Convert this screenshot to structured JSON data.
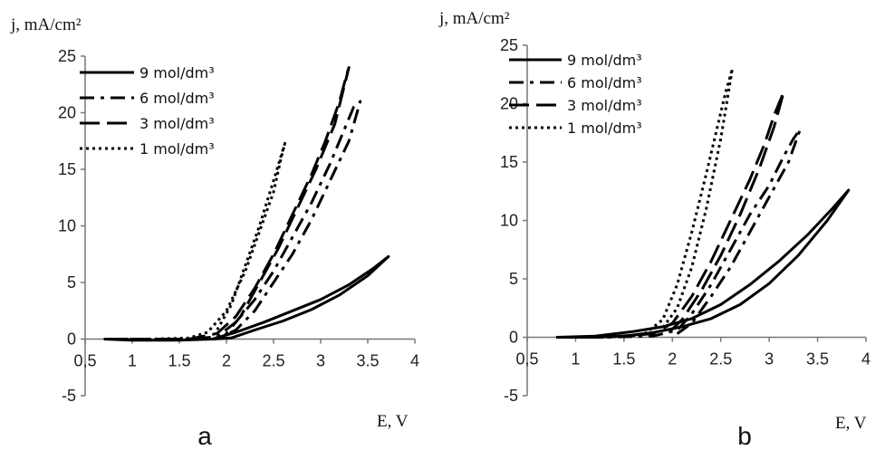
{
  "chart_data": [
    {
      "type": "line",
      "panel_label": "a",
      "xlabel": "E, V",
      "ylabel": "j, mA/cm²",
      "xlim": [
        0.5,
        4
      ],
      "ylim": [
        -5,
        25
      ],
      "xticks": [
        "0,5",
        "1",
        "1.5",
        "2",
        "2.5",
        "3",
        "3.5",
        "4"
      ],
      "yticks": [
        "-5",
        "0",
        "5",
        "10",
        "15",
        "20",
        "25"
      ],
      "legend_position": "top-left",
      "series": [
        {
          "name": "9 mol/dm³",
          "dash": "solid",
          "x": [
            0.7,
            1.0,
            1.5,
            1.85,
            2.1,
            2.4,
            2.7,
            3.0,
            3.3,
            3.55,
            3.72,
            3.5,
            3.2,
            2.9,
            2.6,
            2.3,
            2.05,
            1.85
          ],
          "y": [
            0,
            -0.1,
            -0.1,
            0,
            0.6,
            1.5,
            2.5,
            3.5,
            4.8,
            6.2,
            7.3,
            5.6,
            3.9,
            2.6,
            1.6,
            0.8,
            0.1,
            0
          ]
        },
        {
          "name": "6 mol/dm³",
          "dash": "dash-dot",
          "x": [
            0.7,
            1.2,
            1.6,
            1.9,
            2.1,
            2.3,
            2.5,
            2.7,
            2.9,
            3.1,
            3.25,
            3.35,
            3.42,
            3.3,
            3.1,
            2.9,
            2.7,
            2.5,
            2.3,
            2.1,
            1.9
          ],
          "y": [
            0,
            0,
            0,
            0.2,
            1.5,
            3.5,
            6,
            9,
            12,
            15.5,
            18.5,
            20.5,
            21,
            17.5,
            14,
            10.5,
            7.5,
            5,
            2.5,
            0.8,
            0
          ]
        },
        {
          "name": "3 mol/dm³",
          "dash": "long-dash",
          "x": [
            0.7,
            1.2,
            1.6,
            1.9,
            2.1,
            2.3,
            2.5,
            2.7,
            2.9,
            3.05,
            3.2,
            3.28,
            3.3,
            3.15,
            2.95,
            2.75,
            2.55,
            2.35,
            2.15,
            1.95
          ],
          "y": [
            0,
            0,
            0,
            0.5,
            2,
            4.5,
            7.5,
            11,
            14.5,
            17.5,
            21,
            23.5,
            24,
            19,
            15,
            11.5,
            8,
            5,
            2,
            0
          ]
        },
        {
          "name": "1 mol/dm³",
          "dash": "dotted",
          "x": [
            0.7,
            1.2,
            1.6,
            1.8,
            2.0,
            2.2,
            2.35,
            2.5,
            2.58,
            2.62,
            2.5,
            2.35,
            2.2,
            2.05,
            1.9
          ],
          "y": [
            0,
            0,
            0.1,
            0.6,
            2.5,
            6,
            9.5,
            13,
            16,
            17.3,
            14,
            10,
            6.5,
            3,
            0.8
          ]
        }
      ]
    },
    {
      "type": "line",
      "panel_label": "b",
      "xlabel": "E, V",
      "ylabel": "j, mA/cm²",
      "xlim": [
        0.5,
        4
      ],
      "ylim": [
        -5,
        25
      ],
      "xticks": [
        "0,5",
        "1",
        "1.5",
        "2",
        "2.5",
        "3",
        "3.5",
        "4"
      ],
      "yticks": [
        "-5",
        "0",
        "5",
        "10",
        "15",
        "20",
        "25"
      ],
      "legend_position": "top-left",
      "series": [
        {
          "name": "9 mol/dm³",
          "dash": "solid",
          "x": [
            0.8,
            1.2,
            1.6,
            1.9,
            2.2,
            2.5,
            2.8,
            3.1,
            3.4,
            3.65,
            3.82,
            3.6,
            3.3,
            3.0,
            2.7,
            2.4,
            2.1,
            1.8,
            1.5,
            1.2,
            0.9
          ],
          "y": [
            0,
            0.1,
            0.5,
            0.9,
            1.6,
            2.8,
            4.5,
            6.5,
            8.8,
            11,
            12.6,
            10,
            7,
            4.6,
            2.8,
            1.6,
            0.9,
            0.4,
            0.1,
            0,
            0
          ]
        },
        {
          "name": "6 mol/dm³",
          "dash": "dash-dot",
          "x": [
            0.8,
            1.3,
            1.8,
            2.05,
            2.2,
            2.4,
            2.6,
            2.8,
            3.0,
            3.15,
            3.25,
            3.32,
            3.2,
            3.0,
            2.8,
            2.6,
            2.4,
            2.2,
            2.05
          ],
          "y": [
            0,
            0,
            0.1,
            0.6,
            2,
            4.5,
            7.5,
            10.5,
            13,
            15.5,
            17,
            17.8,
            15,
            12,
            9,
            6,
            3.5,
            1.2,
            0.3
          ]
        },
        {
          "name": "3 mol/dm³",
          "dash": "long-dash",
          "x": [
            0.8,
            1.3,
            1.8,
            2.0,
            2.2,
            2.4,
            2.6,
            2.8,
            2.95,
            3.05,
            3.15,
            3.05,
            2.9,
            2.7,
            2.5,
            2.3,
            2.1,
            1.95
          ],
          "y": [
            0,
            0,
            0.3,
            1.2,
            3.5,
            6.5,
            10,
            13.5,
            16.5,
            19,
            21,
            18,
            14.5,
            10.5,
            7,
            4,
            1.5,
            0.3
          ]
        },
        {
          "name": "1 mol/dm³",
          "dash": "dotted",
          "x": [
            0.8,
            1.3,
            1.7,
            1.9,
            2.05,
            2.2,
            2.35,
            2.45,
            2.55,
            2.62,
            2.5,
            2.35,
            2.2,
            2.05,
            1.9
          ],
          "y": [
            0,
            0,
            0.2,
            1.5,
            4.5,
            9,
            14,
            17.5,
            21,
            23,
            17,
            11,
            6,
            2.5,
            0.8
          ]
        }
      ]
    }
  ]
}
